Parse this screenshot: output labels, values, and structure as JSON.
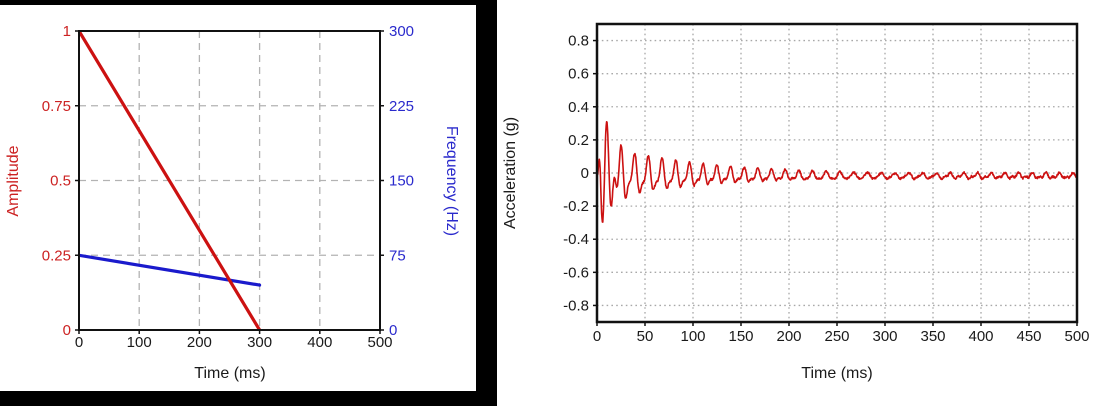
{
  "page": {
    "background": "#ffffff",
    "left_panel_frame_color": "#000000"
  },
  "colors": {
    "red_line": "#cc1111",
    "blue_line": "#1a1acc",
    "red_text": "#cc2222",
    "blue_text": "#2a2acc",
    "axis_text": "#1a1a1a",
    "plot_border": "#111111",
    "grid_dashed": "#b3b3b3",
    "grid_dotted": "#a8a8a8"
  },
  "chart_data": [
    {
      "id": "excitation-profile",
      "type": "line",
      "title": "",
      "xlabel": "Time (ms)",
      "xlim": [
        0,
        500
      ],
      "xticks": {
        "values": [
          0,
          100,
          200,
          300,
          400,
          500
        ],
        "labels": [
          "0",
          "100",
          "200",
          "300",
          "400",
          "500"
        ]
      },
      "grid_x": [
        100,
        200,
        300,
        400
      ],
      "grid_style": "dashed",
      "left_axis": {
        "label": "Amplitude",
        "lim": [
          0,
          1
        ],
        "ticks": {
          "values": [
            0,
            0.25,
            0.5,
            0.75,
            1
          ],
          "labels": [
            "0",
            "0.25",
            "0.5",
            "0.75",
            "1"
          ]
        },
        "grid": [
          0.25,
          0.5,
          0.75
        ]
      },
      "right_axis": {
        "label": "Frequency (Hz)",
        "lim": [
          0,
          300
        ],
        "ticks": {
          "values": [
            0,
            75,
            150,
            225,
            300
          ],
          "labels": [
            "0",
            "75",
            "150",
            "225",
            "300"
          ]
        }
      },
      "series": [
        {
          "name": "frequency",
          "axis": "right",
          "width": 3.2,
          "color_key": "blue_line",
          "points": [
            [
              0,
              75
            ],
            [
              300,
              45
            ]
          ]
        },
        {
          "name": "amplitude",
          "axis": "left",
          "width": 3.2,
          "color_key": "red_line",
          "points": [
            [
              0,
              1
            ],
            [
              300,
              0
            ]
          ]
        }
      ]
    },
    {
      "id": "acceleration-response",
      "type": "line",
      "title": "",
      "xlabel": "Time (ms)",
      "ylabel": "Acceleration (g)",
      "xlim": [
        0,
        500
      ],
      "ylim": [
        -0.9,
        0.9
      ],
      "xticks": {
        "values": [
          0,
          50,
          100,
          150,
          200,
          250,
          300,
          350,
          400,
          450,
          500
        ],
        "labels": [
          "0",
          "50",
          "100",
          "150",
          "200",
          "250",
          "300",
          "350",
          "400",
          "450",
          "500"
        ]
      },
      "yticks": {
        "values": [
          0.8,
          0.6,
          0.4,
          0.2,
          0,
          -0.2,
          -0.4,
          -0.6,
          -0.8
        ],
        "labels": [
          "0.8",
          "0.6",
          "0.4",
          "0.2",
          "0",
          "-0.2",
          "-0.4",
          "-0.6",
          "-0.8"
        ]
      },
      "grid_x": [
        50,
        100,
        150,
        200,
        250,
        300,
        350,
        400,
        450
      ],
      "grid_y": [
        0.8,
        0.6,
        0.4,
        0.2,
        0,
        -0.2,
        -0.4,
        -0.6,
        -0.8
      ],
      "grid_style": "dotted",
      "series": [
        {
          "name": "acceleration",
          "width": 1.6,
          "color_key": "red_line",
          "signal_model": {
            "description": "ring-down: decaying 70 Hz oscillation with sharper positive peaks, initial 125 Hz burst to about +0.27/-0.29 g, settling to a noisy flat line slightly below zero",
            "duration_ms": 500,
            "baseline_g": -0.018,
            "onset_ramp_ms": 4,
            "f_main_hz": 70,
            "main_amp_g": 0.15,
            "main_phase_rad": 3.4,
            "main_decay_ms": 85,
            "amp_floor": 0.08,
            "second_harmonic_ratio": 0.38,
            "second_harmonic_phase_rad": -2.2,
            "transient_f_hz": 125,
            "transient_amp_g": 0.4,
            "transient_decay_ms": 10,
            "noise_g": 0.006
          },
          "approx_extrema_t_g": [
            [
              3,
              0.1
            ],
            [
              6,
              -0.2
            ],
            [
              10,
              0.27
            ],
            [
              14,
              -0.29
            ],
            [
              22,
              0.17
            ],
            [
              33,
              0.15
            ],
            [
              48,
              0.14
            ],
            [
              63,
              0.13
            ],
            [
              78,
              0.12
            ],
            [
              93,
              0.1
            ],
            [
              108,
              0.09
            ],
            [
              123,
              0.08
            ],
            [
              150,
              0.05
            ],
            [
              200,
              0.03
            ],
            [
              300,
              0.02
            ],
            [
              500,
              0.01
            ]
          ]
        }
      ]
    }
  ]
}
